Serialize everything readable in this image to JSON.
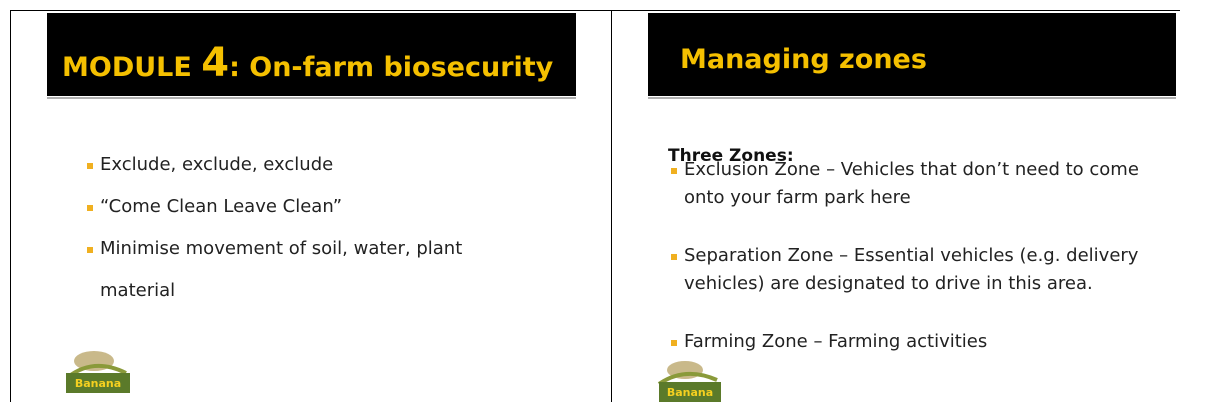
{
  "slides": [
    {
      "title": {
        "prefix": "MODULE ",
        "number": "4",
        "suffix": ": On-farm biosecurity"
      },
      "bullets": [
        {
          "lines": [
            "Exclude, exclude, exclude"
          ]
        },
        {
          "lines": [
            "“Come Clean Leave Clean”"
          ]
        },
        {
          "lines": [
            "Minimise movement of soil, water, plant",
            "material"
          ]
        }
      ],
      "logo": "Banana"
    },
    {
      "title": {
        "text": "Managing zones"
      },
      "heading": "Three Zones:",
      "bullets": [
        {
          "lines": [
            "Exclusion Zone – Vehicles that don’t need to come",
            "onto your farm park here"
          ]
        },
        {
          "lines": [
            "Separation Zone – Essential vehicles (e.g. delivery",
            "vehicles) are designated to drive in this area."
          ]
        },
        {
          "lines": [
            "Farming Zone – Farming activities"
          ]
        }
      ],
      "logo": "Banana"
    }
  ]
}
